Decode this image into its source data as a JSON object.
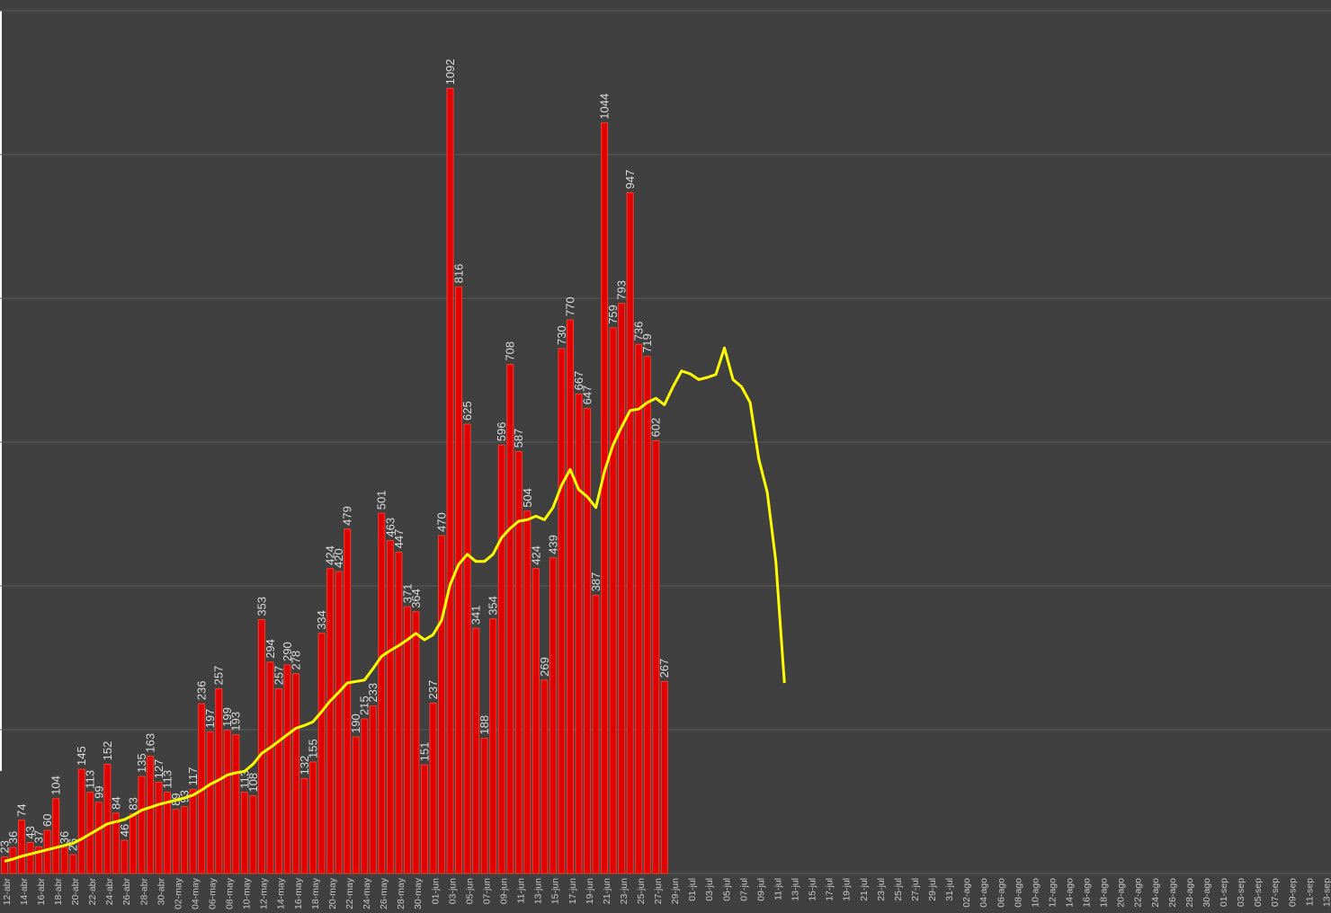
{
  "chart_data": {
    "type": "bar",
    "categories": [
      "12-abr",
      null,
      "14-abr",
      null,
      "16-abr",
      null,
      "18-abr",
      null,
      "20-abr",
      null,
      "22-abr",
      null,
      "24-abr",
      null,
      "26-abr",
      null,
      "28-abr",
      null,
      "30-abr",
      null,
      "02-may",
      null,
      "04-may",
      null,
      "06-may",
      null,
      "08-may",
      null,
      "10-may",
      null,
      "12-may",
      null,
      "14-may",
      null,
      "16-may",
      null,
      "18-may",
      null,
      "20-may",
      null,
      "22-may",
      null,
      "24-may",
      null,
      "26-may",
      null,
      "28-may",
      null,
      "30-may",
      null,
      "01-jun",
      null,
      "03-jun",
      null,
      "05-jun",
      null,
      "07-jun",
      null,
      "09-jun",
      null,
      "11-jun",
      null,
      "13-jun",
      null,
      "15-jun",
      null,
      "17-jun",
      null,
      "19-jun",
      null,
      "21-jun",
      null,
      "23-jun",
      null,
      "25-jun",
      null,
      "27-jun",
      null,
      "29-jun",
      null,
      "01-jul",
      null,
      "03-jul",
      null,
      "05-jul",
      null,
      "07-jul",
      null,
      "09-jul",
      null,
      "11-jul",
      null,
      "13-jul",
      null,
      "15-jul",
      null,
      "17-jul",
      null,
      "19-jul",
      null,
      "21-jul",
      null,
      "23-jul",
      null,
      "25-jul",
      null,
      "27-jul",
      null,
      "29-jul",
      null,
      "31-jul",
      null,
      "02-ago",
      null,
      "04-ago",
      null,
      "06-ago",
      null,
      "08-ago",
      null,
      "10-ago",
      null,
      "12-ago",
      null,
      "14-ago",
      null,
      "16-ago",
      null,
      "18-ago",
      null,
      "20-ago",
      null,
      "22-ago",
      null,
      "24-ago",
      null,
      "26-ago",
      null,
      "28-ago",
      null,
      "30-ago",
      null,
      "01-sep",
      null,
      "03-sep",
      null,
      "05-sep",
      null,
      "07-sep",
      null,
      "09-sep",
      null,
      "11-sep",
      null,
      "13-sep"
    ],
    "series": [
      {
        "type": "bar",
        "color": "#e00000",
        "values": [
          23,
          36,
          74,
          43,
          37,
          60,
          104,
          36,
          26,
          145,
          113,
          99,
          152,
          84,
          46,
          83,
          135,
          163,
          127,
          113,
          89,
          93,
          117,
          236,
          197,
          257,
          199,
          193,
          113,
          108,
          353,
          294,
          257,
          290,
          278,
          132,
          155,
          334,
          424,
          420,
          479,
          190,
          215,
          233,
          501,
          463,
          447,
          371,
          364,
          151,
          237,
          470,
          1092,
          816,
          625,
          341,
          188,
          354,
          596,
          708,
          587,
          504,
          424,
          269,
          439,
          730,
          770,
          667,
          647,
          387,
          1044,
          759,
          793,
          947,
          736,
          719,
          602,
          267,
          null,
          null,
          null,
          null,
          null,
          null,
          null,
          null,
          null,
          null,
          null,
          null,
          null,
          null,
          null,
          null,
          null,
          null,
          null,
          null,
          null,
          null,
          null,
          null,
          null,
          null,
          null,
          null,
          null,
          null,
          null,
          null,
          null,
          null,
          null,
          null,
          null,
          null,
          null,
          null,
          null,
          null,
          null,
          null,
          null,
          null,
          null,
          null,
          null,
          null,
          null,
          null,
          null,
          null,
          null,
          null,
          null,
          null,
          null,
          null,
          null,
          null,
          null,
          null,
          null,
          null,
          null,
          null,
          null,
          null,
          null,
          null,
          null,
          null,
          null,
          null,
          null
        ]
      },
      {
        "type": "line",
        "color": "#ffff00",
        "values": [
          17,
          20,
          24,
          27,
          30,
          33,
          36,
          39,
          42,
          48,
          55,
          62,
          69,
          72,
          75,
          81,
          88,
          92,
          96,
          99,
          102,
          105,
          109,
          116,
          124,
          130,
          137,
          140,
          142,
          152,
          167,
          175,
          184,
          193,
          202,
          206,
          211,
          225,
          240,
          252,
          265,
          267,
          269,
          285,
          302,
          310,
          317,
          325,
          334,
          325,
          332,
          352,
          402,
          430,
          444,
          434,
          434,
          444,
          467,
          480,
          490,
          492,
          497,
          492,
          509,
          540,
          562,
          534,
          524,
          509,
          559,
          596,
          621,
          644,
          646,
          655,
          661,
          652,
          677,
          699,
          695,
          687,
          690,
          694,
          731,
          687,
          677,
          655,
          577,
          530,
          434,
          265,
          null,
          null,
          null,
          null,
          null,
          null,
          null,
          null,
          null,
          null,
          null,
          null,
          null,
          null,
          null,
          null,
          null,
          null,
          null,
          null,
          null,
          null,
          null,
          null,
          null,
          null,
          null,
          null,
          null,
          null,
          null,
          null,
          null,
          null,
          null,
          null,
          null,
          null,
          null,
          null,
          null,
          null,
          null,
          null,
          null,
          null,
          null,
          null,
          null,
          null,
          null,
          null,
          null,
          null,
          null,
          null,
          null,
          null,
          null,
          null,
          null,
          null,
          null
        ]
      }
    ],
    "ylim": [
      0,
      1200
    ],
    "yticks": [
      0,
      200,
      400,
      600,
      800,
      1000,
      1200
    ],
    "grid": true,
    "value_labels_shown": true
  }
}
